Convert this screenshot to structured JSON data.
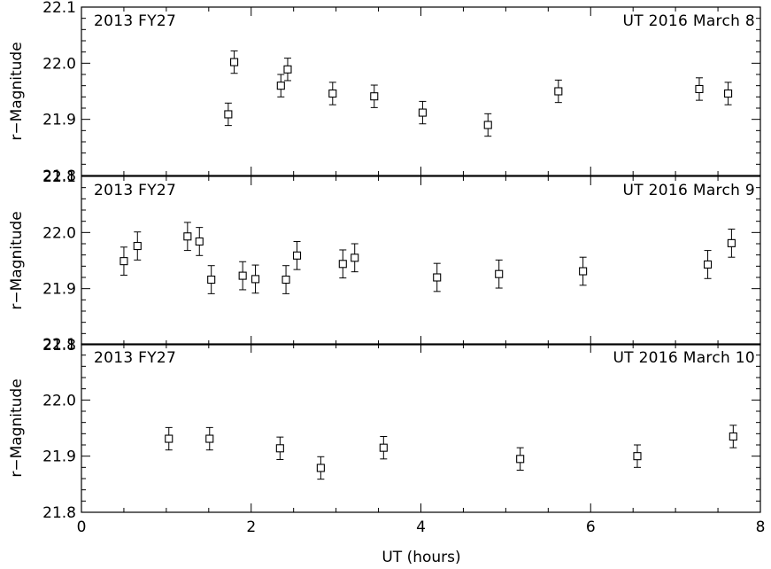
{
  "chart_data": {
    "type": "scatter",
    "xlabel": "UT (hours)",
    "xlim": [
      0,
      8
    ],
    "xticks": [
      "0",
      "2",
      "4",
      "6",
      "8"
    ],
    "panels": [
      {
        "label_left": "2013 FY27",
        "label_right": "UT 2016 March 8",
        "ylabel": "r−Magnitude",
        "ylim": [
          21.8,
          22.1
        ],
        "yticks": [
          "21.8",
          "21.9",
          "22.0",
          "22.1"
        ],
        "x": [
          1.73,
          1.8,
          2.35,
          2.43,
          2.96,
          3.45,
          4.02,
          4.79,
          5.62,
          7.28,
          7.62
        ],
        "y": [
          21.909,
          22.002,
          21.96,
          21.989,
          21.946,
          21.941,
          21.912,
          21.89,
          21.95,
          21.954,
          21.946
        ],
        "yerr": [
          0.02,
          0.02,
          0.02,
          0.02,
          0.02,
          0.02,
          0.02,
          0.02,
          0.02,
          0.02,
          0.02
        ]
      },
      {
        "label_left": "2013 FY27",
        "label_right": "UT 2016 March 9",
        "ylabel": "r−Magnitude",
        "ylim": [
          21.8,
          22.1
        ],
        "yticks": [
          "21.8",
          "21.9",
          "22.0",
          "22.1"
        ],
        "x": [
          0.5,
          0.66,
          1.25,
          1.39,
          1.53,
          1.9,
          2.05,
          2.41,
          2.54,
          3.08,
          3.22,
          4.19,
          4.92,
          5.91,
          7.38,
          7.66
        ],
        "y": [
          21.949,
          21.976,
          21.993,
          21.984,
          21.916,
          21.923,
          21.917,
          21.916,
          21.959,
          21.944,
          21.955,
          21.92,
          21.926,
          21.931,
          21.943,
          21.981
        ],
        "yerr": [
          0.025,
          0.025,
          0.025,
          0.025,
          0.025,
          0.025,
          0.025,
          0.025,
          0.025,
          0.025,
          0.025,
          0.025,
          0.025,
          0.025,
          0.025,
          0.025
        ]
      },
      {
        "label_left": "2013 FY27",
        "label_right": "UT 2016 March 10",
        "ylabel": "r−Magnitude",
        "ylim": [
          21.8,
          22.1
        ],
        "yticks": [
          "21.8",
          "21.9",
          "22.0",
          "22.1"
        ],
        "x": [
          1.03,
          1.51,
          2.34,
          2.82,
          3.56,
          5.17,
          6.55,
          7.68
        ],
        "y": [
          21.931,
          21.931,
          21.914,
          21.879,
          21.915,
          21.895,
          21.9,
          21.935
        ],
        "yerr": [
          0.02,
          0.02,
          0.02,
          0.02,
          0.02,
          0.02,
          0.02,
          0.02
        ]
      }
    ]
  }
}
